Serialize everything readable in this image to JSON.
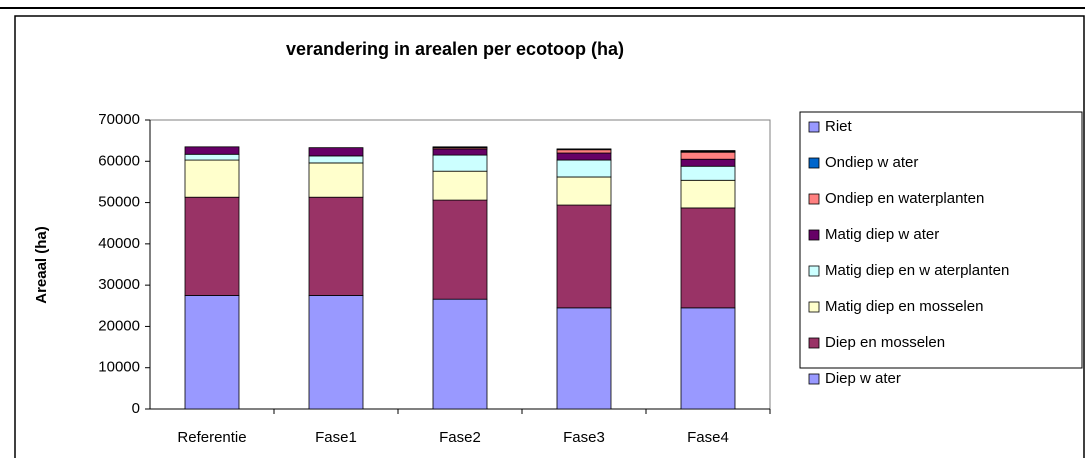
{
  "chart_data": {
    "type": "stacked_bar",
    "title": "verandering in arealen per ecotoop (ha)",
    "y_label": "Areaal (ha)",
    "categories": [
      "Referentie",
      "Fase1",
      "Fase2",
      "Fase3",
      "Fase4"
    ],
    "series": [
      {
        "name": "Diep w ater",
        "color": "#9999ff",
        "values": [
          27500,
          27500,
          26600,
          24500,
          24500
        ]
      },
      {
        "name": "Diep en mosselen",
        "color": "#993366",
        "values": [
          23800,
          23800,
          24000,
          24900,
          24200
        ]
      },
      {
        "name": "Matig diep en mosselen",
        "color": "#ffffcc",
        "values": [
          9000,
          8300,
          7000,
          6800,
          6700
        ]
      },
      {
        "name": "Matig diep en w aterplanten",
        "color": "#ccffff",
        "values": [
          1400,
          1700,
          3900,
          4100,
          3400
        ]
      },
      {
        "name": "Matig diep w ater",
        "color": "#660066",
        "values": [
          1800,
          2000,
          1500,
          1700,
          1700
        ]
      },
      {
        "name": "Ondiep en waterplanten",
        "color": "#ff8080",
        "values": [
          0,
          0,
          300,
          800,
          1700
        ]
      },
      {
        "name": "Ondiep w ater",
        "color": "#0066cc",
        "values": [
          0,
          0,
          200,
          0,
          200
        ]
      },
      {
        "name": "Riet",
        "color": "#9999ff",
        "values": [
          0,
          0,
          0,
          200,
          200
        ]
      }
    ],
    "ylim": [
      0,
      70000
    ],
    "yticks": [
      0,
      10000,
      20000,
      30000,
      40000,
      50000,
      60000,
      70000
    ],
    "legend": "right"
  }
}
